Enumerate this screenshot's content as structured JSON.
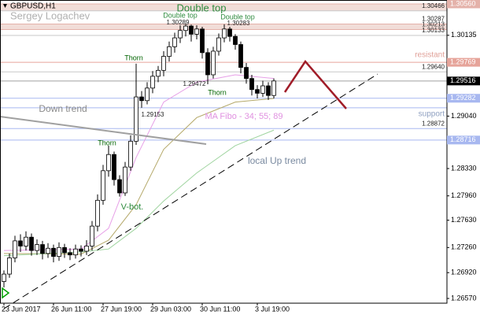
{
  "chart_data": {
    "type": "candlestick",
    "symbol": "GBPUSD,H1",
    "author": "Sergey Logachev",
    "categories": [
      "23 Jun 2017",
      null,
      null,
      null,
      null,
      null,
      null,
      null,
      null,
      "26 Jun 11:00",
      null,
      null,
      null,
      null,
      null,
      null,
      null,
      null,
      "27 Jun 19:00",
      null,
      null,
      null,
      null,
      null,
      null,
      null,
      null,
      "29 Jun 03:00",
      null,
      null,
      null,
      null,
      null,
      null,
      null,
      null,
      "30 Jun 11:00",
      null,
      null,
      null,
      null,
      null,
      null,
      null,
      null,
      null,
      "3 Jul 19:00",
      null,
      null,
      null
    ],
    "open": [
      1.268,
      1.269,
      1.2712,
      1.2735,
      1.2728,
      1.274,
      1.2722,
      1.273,
      1.2718,
      1.2725,
      1.2714,
      1.2726,
      1.2719,
      1.2716,
      1.2724,
      1.2721,
      1.2728,
      1.2755,
      1.279,
      1.283,
      1.2852,
      1.2818,
      1.28,
      1.2835,
      1.287,
      1.293,
      1.2925,
      1.2942,
      1.2958,
      1.2966,
      1.2985,
      1.2998,
      1.301,
      1.302,
      1.3026,
      1.3015,
      1.3022,
      1.299,
      1.296,
      1.2992,
      1.301,
      1.3022,
      1.3012,
      1.3001,
      1.297,
      1.2955,
      1.294,
      1.2935,
      1.2945,
      1.2932
    ],
    "high": [
      1.2695,
      1.2718,
      1.2742,
      1.2744,
      1.2748,
      1.2745,
      1.2737,
      1.2735,
      1.2732,
      1.273,
      1.2733,
      1.2731,
      1.2725,
      1.273,
      1.2729,
      1.2736,
      1.2762,
      1.2798,
      1.2838,
      1.2864,
      1.2856,
      1.2824,
      1.2842,
      1.2878,
      1.2975,
      1.2938,
      1.295,
      1.2965,
      1.2972,
      1.2992,
      1.3005,
      1.3017,
      1.3027,
      1.30289,
      1.3028,
      1.3027,
      1.3025,
      1.2996,
      1.2998,
      1.3016,
      1.30283,
      1.3025,
      1.3015,
      1.3005,
      1.2976,
      1.296,
      1.2946,
      1.2952,
      1.295,
      1.2955
    ],
    "low": [
      1.2672,
      1.2685,
      1.2706,
      1.272,
      1.2722,
      1.2715,
      1.2716,
      1.271,
      1.2712,
      1.2706,
      1.2708,
      1.2712,
      1.2709,
      1.2711,
      1.2714,
      1.2716,
      1.2722,
      1.2748,
      1.2784,
      1.2822,
      1.281,
      1.2795,
      1.2796,
      1.283,
      1.2865,
      1.29153,
      1.292,
      1.2935,
      1.295,
      1.2958,
      1.2978,
      1.299,
      1.3003,
      1.3012,
      1.3005,
      1.3008,
      1.2982,
      1.29472,
      1.2955,
      1.2986,
      1.3004,
      1.3005,
      1.2994,
      1.2962,
      1.2948,
      1.2932,
      1.2928,
      1.293,
      1.2926,
      1.2928
    ],
    "close": [
      1.269,
      1.2712,
      1.2735,
      1.2728,
      1.274,
      1.2722,
      1.273,
      1.2718,
      1.2725,
      1.2714,
      1.2726,
      1.2719,
      1.2716,
      1.2724,
      1.2721,
      1.2728,
      1.2755,
      1.279,
      1.283,
      1.2852,
      1.2818,
      1.28,
      1.2835,
      1.287,
      1.293,
      1.2925,
      1.2942,
      1.2958,
      1.2966,
      1.2985,
      1.2998,
      1.301,
      1.302,
      1.3026,
      1.3015,
      1.3022,
      1.299,
      1.296,
      1.2992,
      1.301,
      1.3022,
      1.3012,
      1.3001,
      1.297,
      1.2955,
      1.294,
      1.2935,
      1.2945,
      1.2932,
      1.29516
    ],
    "ylim": [
      1.26506,
      1.30613
    ],
    "yticks": [
      {
        "value": 1.30135,
        "label": "1.30135"
      },
      {
        "value": 1.2904,
        "label": "1.29040"
      },
      {
        "value": 1.2833,
        "label": "1.28330"
      },
      {
        "value": 1.2796,
        "label": "1.27960"
      },
      {
        "value": 1.2763,
        "label": "1.27630"
      },
      {
        "value": 1.2726,
        "label": "1.27260"
      },
      {
        "value": 1.2692,
        "label": "1.26920"
      },
      {
        "value": 1.2657,
        "label": "1.26570"
      }
    ],
    "zones": [
      {
        "from": 1.30466,
        "to": 1.3056,
        "color": "#f1ddd8"
      },
      {
        "from": 1.30213,
        "to": 1.30287,
        "color": "#f1ddd8"
      }
    ],
    "levels": [
      {
        "value": 1.3056,
        "label": "1.30560",
        "color": "#e4b2aa",
        "marker": "axis"
      },
      {
        "value": 1.30466,
        "color": "#c8c8c8",
        "marker": "inline"
      },
      {
        "value": 1.30287,
        "color": "#e4b2aa",
        "marker": "inline"
      },
      {
        "value": 1.30213,
        "color": "#e4b2aa",
        "marker": "inline"
      },
      {
        "value": 1.30133,
        "color": "#c8c8c8",
        "marker": "inline"
      },
      {
        "value": 1.29769,
        "color": "#e6a49a",
        "marker": "axis"
      },
      {
        "value": 1.2964,
        "label": "1.29640",
        "color": "#c8c8c8",
        "marker": "inline"
      },
      {
        "value": 1.29516,
        "color": "#a0a0a0",
        "marker": "axis"
      },
      {
        "value": 1.29282,
        "color": "#a8b8f0",
        "marker": "axis"
      },
      {
        "value": 1.29153,
        "color": "#a8b8f0",
        "marker": "none"
      },
      {
        "value": 1.28872,
        "color": "#a8b8f0",
        "marker": "inline"
      },
      {
        "value": 1.28716,
        "color": "#a8b8f0",
        "marker": "axis"
      }
    ],
    "current_price_color": "#000000",
    "moving_averages": {
      "label": "MA Fibo - 34; 55; 89",
      "lines": [
        {
          "color": "#e7a0e7",
          "x": [
            0,
            14,
            19,
            24,
            29,
            35,
            42,
            49
          ],
          "values": [
            1.2722,
            1.2724,
            1.2752,
            1.2848,
            1.2923,
            1.295,
            1.296,
            1.2955
          ]
        },
        {
          "color": "#b5a96a",
          "x": [
            0,
            14,
            19,
            24,
            29,
            35,
            42,
            49
          ],
          "values": [
            1.2718,
            1.2717,
            1.2736,
            1.2784,
            1.2859,
            1.2902,
            1.2923,
            1.2928
          ]
        },
        {
          "color": "#9fd49f",
          "x": [
            0,
            14,
            19,
            24,
            29,
            35,
            42,
            49
          ],
          "values": [
            1.2715,
            1.272,
            1.2724,
            1.2752,
            1.2789,
            1.2827,
            1.2864,
            1.2885
          ]
        }
      ]
    },
    "notes": [
      "Double top",
      "Double top",
      "Double top",
      "Thorn",
      "Thorn",
      "Thorn",
      "V-bot.",
      "Down trend",
      "local Up trend",
      "resistant",
      "support"
    ],
    "price_notes": [
      1.30289,
      1.30283,
      1.29472,
      1.29153
    ]
  }
}
